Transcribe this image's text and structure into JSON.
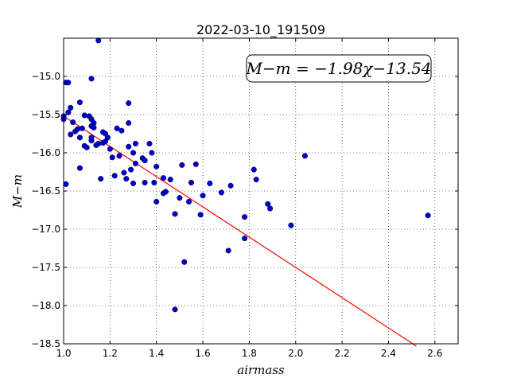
{
  "chart_data": {
    "type": "scatter",
    "title": "2022-03-10_191509",
    "xlabel": "airmass",
    "ylabel": "M−m",
    "xlim": [
      1.0,
      2.7
    ],
    "ylim": [
      -18.5,
      -14.5
    ],
    "y_inverted": true,
    "grid": true,
    "x_ticks": [
      1.0,
      1.2,
      1.4,
      1.6,
      1.8,
      2.0,
      2.2,
      2.4,
      2.6
    ],
    "x_tick_labels": [
      "1.0",
      "1.2",
      "1.4",
      "1.6",
      "1.8",
      "2.0",
      "2.2",
      "2.4",
      "2.6"
    ],
    "y_ticks": [
      -15.0,
      -15.5,
      -16.0,
      -16.5,
      -17.0,
      -17.5,
      -18.0,
      -18.5
    ],
    "y_tick_labels": [
      "−15.0",
      "−15.5",
      "−16.0",
      "−16.5",
      "−17.0",
      "−17.5",
      "−18.0",
      "−18.5"
    ],
    "annotation": "M−m = −1.98χ−13.54",
    "annotation_position": "top-right",
    "fit_line": {
      "slope": -1.98,
      "intercept": -13.54,
      "color": "#ff0000",
      "x_range": [
        1.0,
        2.52
      ]
    },
    "point_color": "#0000cc",
    "points": [
      [
        1.0,
        -15.52
      ],
      [
        1.0,
        -15.56
      ],
      [
        1.01,
        -15.08
      ],
      [
        1.02,
        -15.08
      ],
      [
        1.01,
        -16.41
      ],
      [
        1.02,
        -15.47
      ],
      [
        1.03,
        -15.41
      ],
      [
        1.04,
        -15.6
      ],
      [
        1.03,
        -15.76
      ],
      [
        1.05,
        -15.72
      ],
      [
        1.06,
        -15.69
      ],
      [
        1.07,
        -15.34
      ],
      [
        1.07,
        -15.8
      ],
      [
        1.07,
        -16.2
      ],
      [
        1.08,
        -15.68
      ],
      [
        1.09,
        -15.91
      ],
      [
        1.1,
        -15.93
      ],
      [
        1.09,
        -15.51
      ],
      [
        1.11,
        -15.52
      ],
      [
        1.12,
        -15.84
      ],
      [
        1.12,
        -15.8
      ],
      [
        1.12,
        -15.56
      ],
      [
        1.12,
        -15.03
      ],
      [
        1.13,
        -15.61
      ],
      [
        1.12,
        -15.65
      ],
      [
        1.13,
        -15.67
      ],
      [
        1.14,
        -15.9
      ],
      [
        1.15,
        -15.88
      ],
      [
        1.15,
        -14.53
      ],
      [
        1.16,
        -16.34
      ],
      [
        1.17,
        -15.87
      ],
      [
        1.17,
        -15.73
      ],
      [
        1.18,
        -15.75
      ],
      [
        1.18,
        -15.85
      ],
      [
        1.19,
        -15.8
      ],
      [
        1.2,
        -15.95
      ],
      [
        1.21,
        -16.06
      ],
      [
        1.22,
        -16.3
      ],
      [
        1.23,
        -15.68
      ],
      [
        1.24,
        -16.04
      ],
      [
        1.25,
        -15.71
      ],
      [
        1.26,
        -16.26
      ],
      [
        1.27,
        -16.34
      ],
      [
        1.28,
        -15.92
      ],
      [
        1.28,
        -15.61
      ],
      [
        1.29,
        -16.22
      ],
      [
        1.28,
        -15.35
      ],
      [
        1.31,
        -15.88
      ],
      [
        1.3,
        -16.0
      ],
      [
        1.3,
        -16.4
      ],
      [
        1.31,
        -16.14
      ],
      [
        1.34,
        -16.07
      ],
      [
        1.35,
        -16.39
      ],
      [
        1.35,
        -16.1
      ],
      [
        1.37,
        -15.88
      ],
      [
        1.38,
        -16.0
      ],
      [
        1.39,
        -16.39
      ],
      [
        1.4,
        -16.18
      ],
      [
        1.4,
        -16.64
      ],
      [
        1.43,
        -16.33
      ],
      [
        1.43,
        -16.53
      ],
      [
        1.44,
        -16.51
      ],
      [
        1.46,
        -16.35
      ],
      [
        1.48,
        -16.8
      ],
      [
        1.48,
        -18.05
      ],
      [
        1.5,
        -16.59
      ],
      [
        1.51,
        -16.16
      ],
      [
        1.52,
        -17.43
      ],
      [
        1.54,
        -16.64
      ],
      [
        1.55,
        -16.39
      ],
      [
        1.57,
        -16.15
      ],
      [
        1.59,
        -16.81
      ],
      [
        1.6,
        -16.56
      ],
      [
        1.63,
        -16.4
      ],
      [
        1.68,
        -16.52
      ],
      [
        1.71,
        -17.28
      ],
      [
        1.72,
        -16.43
      ],
      [
        1.78,
        -16.84
      ],
      [
        1.78,
        -17.12
      ],
      [
        1.82,
        -16.22
      ],
      [
        1.83,
        -16.35
      ],
      [
        1.88,
        -16.67
      ],
      [
        1.89,
        -16.73
      ],
      [
        1.98,
        -16.95
      ],
      [
        2.04,
        -16.04
      ],
      [
        2.57,
        -16.82
      ]
    ]
  }
}
